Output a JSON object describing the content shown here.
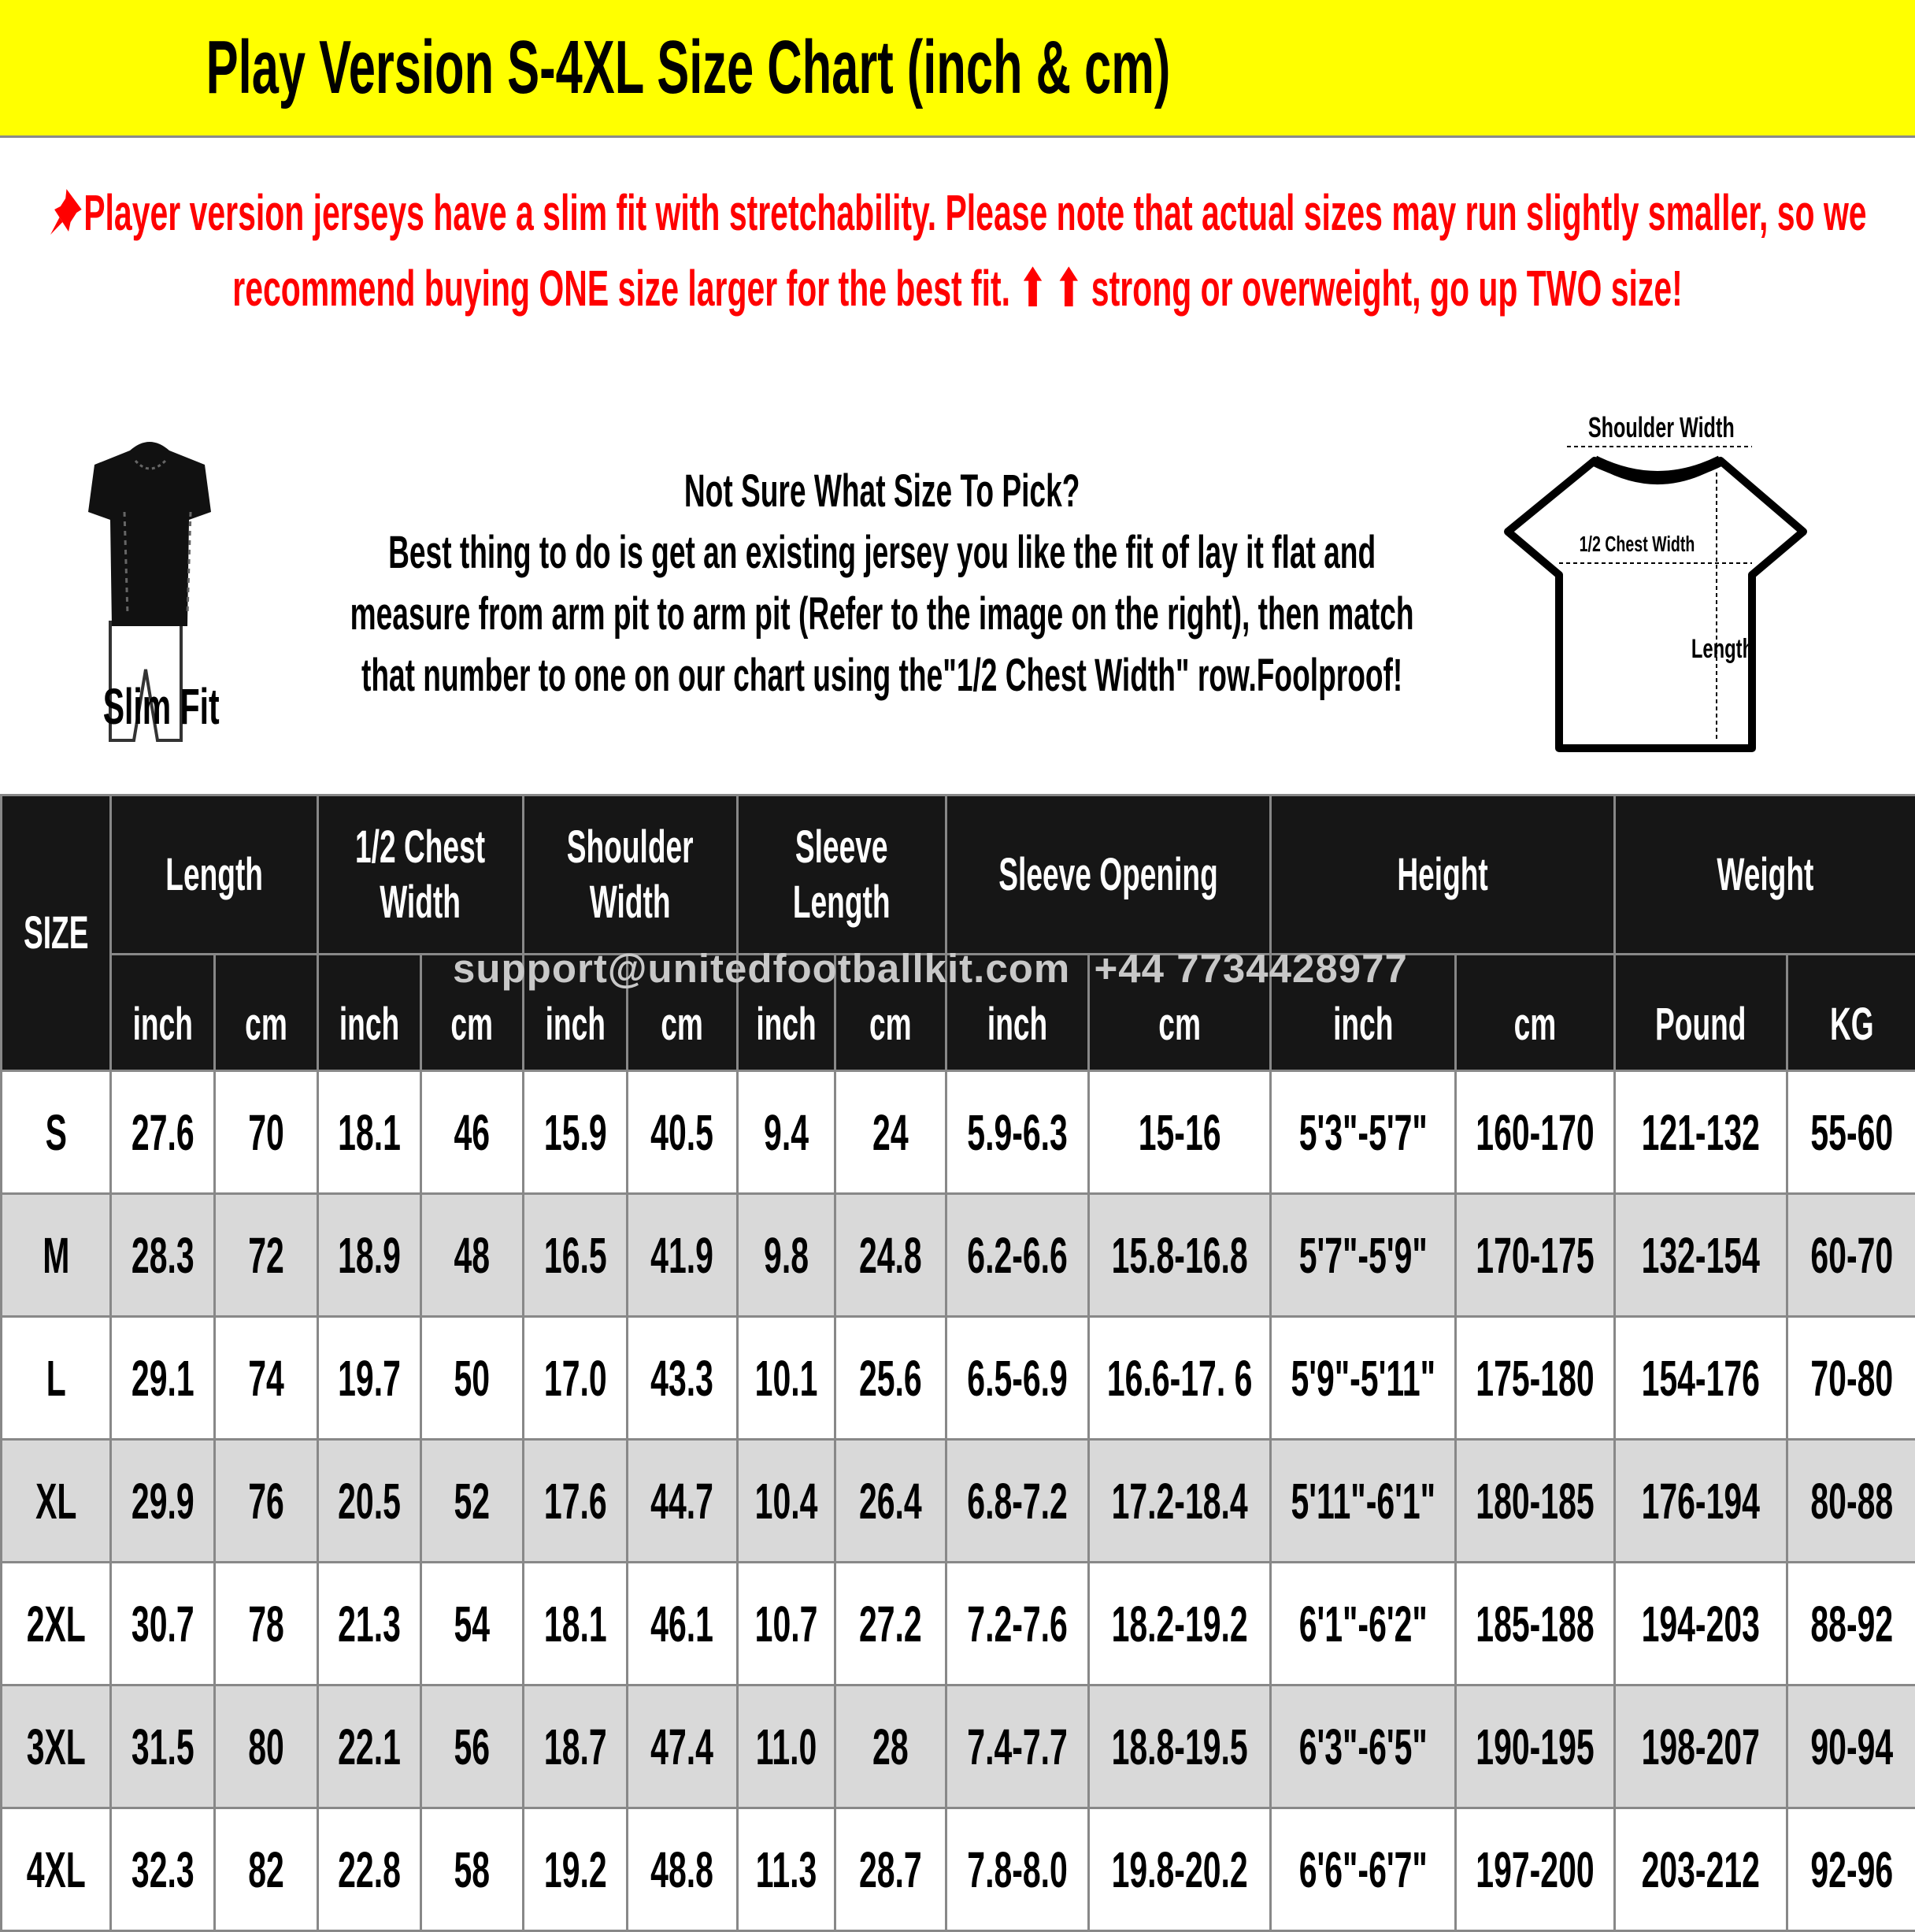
{
  "title": "Play Version S-4XL Size Chart (inch & cm)",
  "colors": {
    "title_bg": "#ffff00",
    "notice": "#ff0000",
    "header_bg": "#161616",
    "stripe": "#d9d9d9"
  },
  "notice": {
    "icon": "pushpin-icon",
    "text": "Player version jerseys have a slim fit with stretchability. Please note that actual sizes may run slightly smaller, so we recommend buying ONE size larger for the best fit. ⬆ ⬆ strong or overweight, go up TWO size!"
  },
  "slim_fit": {
    "label": "Slim Fit"
  },
  "guide": {
    "heading": "Not Sure What Size To Pick?",
    "text": "Best thing to do is get an existing jersey you like the fit of lay it flat and measure from arm pit to arm pit (Refer to the image on the right), then match that number to one on our chart using the\"1/2 Chest Width\" row.Foolproof!"
  },
  "diagram": {
    "shoulder": "Shoulder Width",
    "chest": "1/2 Chest Width",
    "length": "Length"
  },
  "table": {
    "size_header": "SIZE",
    "groups": [
      "Length",
      "1/2 Chest Width",
      "Shoulder Width",
      "Sleeve Length",
      "Sleeve Opening",
      "Height",
      "Weight"
    ],
    "units": [
      "inch",
      "cm",
      "inch",
      "cm",
      "inch",
      "cm",
      "inch",
      "cm",
      "inch",
      "cm",
      "inch",
      "cm",
      "Pound",
      "KG"
    ],
    "rows": [
      [
        "S",
        "27.6",
        "70",
        "18.1",
        "46",
        "15.9",
        "40.5",
        "9.4",
        "24",
        "5.9-6.3",
        "15-16",
        "5'3\"-5'7\"",
        "160-170",
        "121-132",
        "55-60"
      ],
      [
        "M",
        "28.3",
        "72",
        "18.9",
        "48",
        "16.5",
        "41.9",
        "9.8",
        "24.8",
        "6.2-6.6",
        "15.8-16.8",
        "5'7\"-5'9\"",
        "170-175",
        "132-154",
        "60-70"
      ],
      [
        "L",
        "29.1",
        "74",
        "19.7",
        "50",
        "17.0",
        "43.3",
        "10.1",
        "25.6",
        "6.5-6.9",
        "16.6-17. 6",
        "5'9\"-5'11\"",
        "175-180",
        "154-176",
        "70-80"
      ],
      [
        "XL",
        "29.9",
        "76",
        "20.5",
        "52",
        "17.6",
        "44.7",
        "10.4",
        "26.4",
        "6.8-7.2",
        "17.2-18.4",
        "5'11\"-6'1\"",
        "180-185",
        "176-194",
        "80-88"
      ],
      [
        "2XL",
        "30.7",
        "78",
        "21.3",
        "54",
        "18.1",
        "46.1",
        "10.7",
        "27.2",
        "7.2-7.6",
        "18.2-19.2",
        "6'1\"-6'2\"",
        "185-188",
        "194-203",
        "88-92"
      ],
      [
        "3XL",
        "31.5",
        "80",
        "22.1",
        "56",
        "18.7",
        "47.4",
        "11.0",
        "28",
        "7.4-7.7",
        "18.8-19.5",
        "6'3\"-6'5\"",
        "190-195",
        "198-207",
        "90-94"
      ],
      [
        "4XL",
        "32.3",
        "82",
        "22.8",
        "58",
        "19.2",
        "48.8",
        "11.3",
        "28.7",
        "7.8-8.0",
        "19.8-20.2",
        "6'6\"-6'7\"",
        "197-200",
        "203-212",
        "92-96"
      ]
    ]
  },
  "watermark": "support@unitedfootballkit.com  +44 7734428977"
}
